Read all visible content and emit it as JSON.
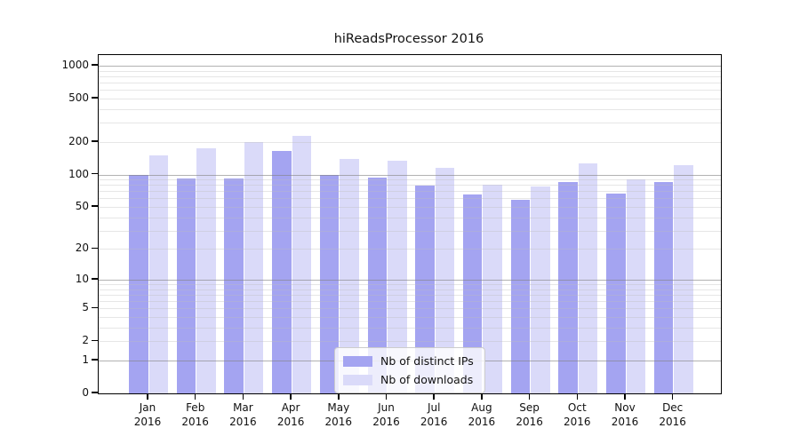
{
  "chart_data": {
    "type": "bar",
    "title": "hiReadsProcessor 2016",
    "categories": [
      "Jan",
      "Feb",
      "Mar",
      "Apr",
      "May",
      "Jun",
      "Jul",
      "Aug",
      "Sep",
      "Oct",
      "Nov",
      "Dec"
    ],
    "year": "2016",
    "series": [
      {
        "name": "Nb of distinct IPs",
        "color": "#a4a4f1",
        "values": [
          100,
          92,
          92,
          164,
          100,
          94,
          79,
          65,
          58,
          85,
          67,
          85
        ]
      },
      {
        "name": "Nb of downloads",
        "color": "#dadaf9",
        "values": [
          150,
          175,
          198,
          225,
          140,
          133,
          115,
          80,
          77,
          127,
          90,
          121
        ]
      }
    ],
    "yscale": "log1p",
    "ylim": [
      0,
      1000
    ],
    "y_ticks": [
      0,
      1,
      2,
      5,
      10,
      20,
      50,
      100,
      200,
      500,
      1000
    ],
    "y_major_gridlines": [
      1,
      10,
      100,
      1000
    ],
    "grid": true,
    "legend_position": "inside-bottom-center",
    "colors": {
      "major_grid": "#b7b7b7",
      "minor_grid": "#ebebeb",
      "frame": "#000000",
      "background": "#ffffff",
      "text": "#111111"
    }
  }
}
